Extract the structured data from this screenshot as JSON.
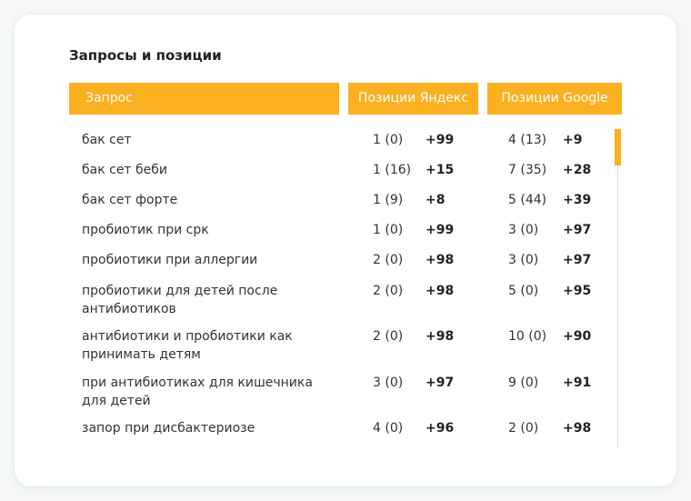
{
  "panel": {
    "title": "Запросы и позиции",
    "headers": {
      "query": "Запрос",
      "yandex": "Позиции Яндекс",
      "google": "Позиции Google"
    },
    "rows": [
      {
        "query": "бак сет",
        "yandex_pos": "1 (0)",
        "yandex_delta": "+99",
        "google_pos": "4 (13)",
        "google_delta": "+9"
      },
      {
        "query": "бак сет беби",
        "yandex_pos": "1 (16)",
        "yandex_delta": "+15",
        "google_pos": "7 (35)",
        "google_delta": "+28"
      },
      {
        "query": "бак сет форте",
        "yandex_pos": "1 (9)",
        "yandex_delta": "+8",
        "google_pos": "5 (44)",
        "google_delta": "+39"
      },
      {
        "query": "пробиотик при срк",
        "yandex_pos": "1 (0)",
        "yandex_delta": "+99",
        "google_pos": "3 (0)",
        "google_delta": "+97"
      },
      {
        "query": "пробиотики при аллергии",
        "yandex_pos": "2 (0)",
        "yandex_delta": "+98",
        "google_pos": "3 (0)",
        "google_delta": "+97"
      },
      {
        "query": "пробиотики для детей после антибиотиков",
        "yandex_pos": "2 (0)",
        "yandex_delta": "+98",
        "google_pos": "5 (0)",
        "google_delta": "+95"
      },
      {
        "query": "антибиотики и пробиотики как принимать детям",
        "yandex_pos": "2 (0)",
        "yandex_delta": "+98",
        "google_pos": "10 (0)",
        "google_delta": "+90"
      },
      {
        "query": "при антибиотиках для кишечника для детей",
        "yandex_pos": "3 (0)",
        "yandex_delta": "+97",
        "google_pos": "9 (0)",
        "google_delta": "+91"
      },
      {
        "query": "запор при дисбактериозе",
        "yandex_pos": "4 (0)",
        "yandex_delta": "+96",
        "google_pos": "2 (0)",
        "google_delta": "+98"
      }
    ]
  },
  "colors": {
    "accent": "#fbb021",
    "text": "#333333"
  }
}
